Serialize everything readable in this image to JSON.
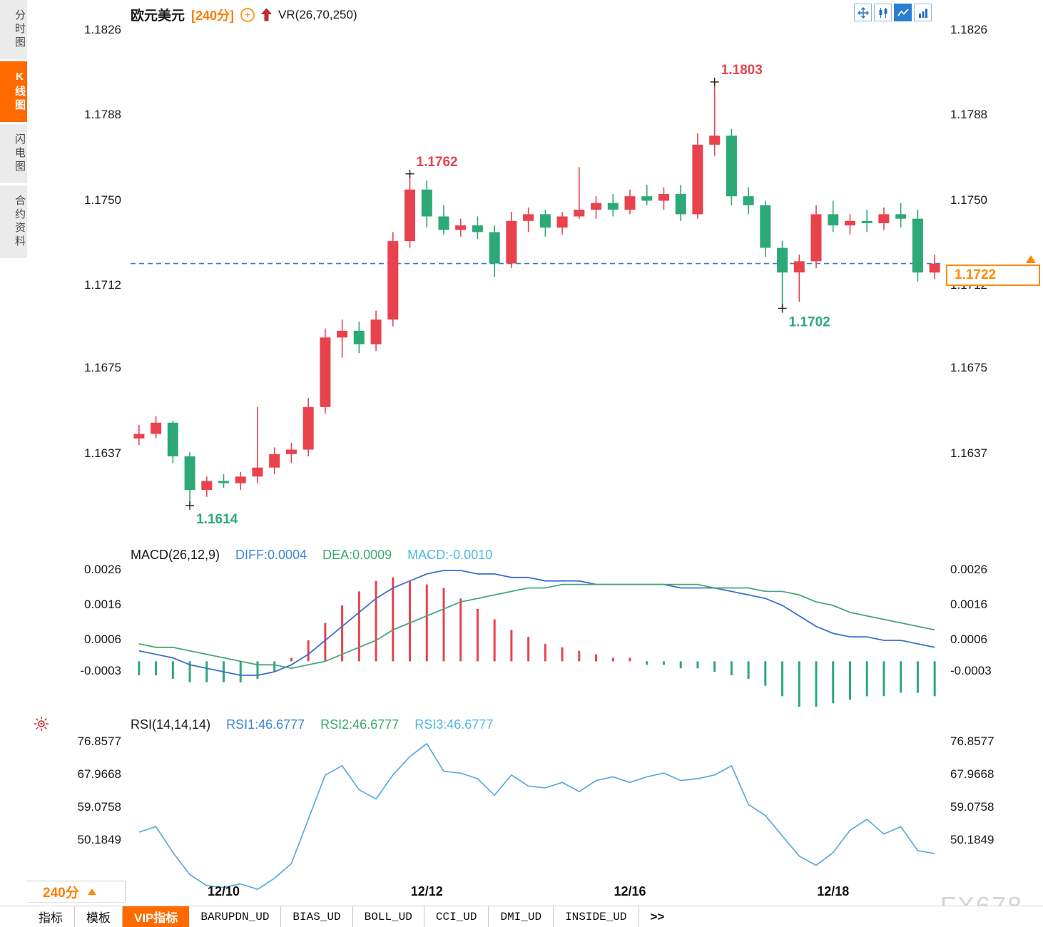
{
  "sidebar": {
    "items": [
      {
        "label": "分时图",
        "active": false
      },
      {
        "label": "K线图",
        "active": true
      },
      {
        "label": "闪电图",
        "active": false
      },
      {
        "label": "合约资料",
        "active": false
      }
    ]
  },
  "header": {
    "symbol": "欧元美元",
    "period": "[240分]",
    "vr": "VR(26,70,250)"
  },
  "icons": {
    "header": [
      "circle-plus",
      "red-up-arrow"
    ],
    "toolbar": [
      "pan-crosshair",
      "candlestick",
      "line-chart",
      "bar-columns"
    ],
    "rsi_row": "sun"
  },
  "colors": {
    "accent_orange": "#ff6a00",
    "badge_orange": "#ff8a00",
    "up_red": "#e8434d",
    "down_green": "#2ca977",
    "diff_blue": "#3d6fd0",
    "dea_green": "#47a877",
    "rsi_blue": "#58ace0",
    "dashed_line_blue": "#2f80d0"
  },
  "current_price": {
    "value": "1.1722"
  },
  "macd_header": {
    "title": "MACD(26,12,9)",
    "diff_label": "DIFF:0.0004",
    "dea_label": "DEA:0.0009",
    "macd_label": "MACD:-0.0010"
  },
  "rsi_header": {
    "title": "RSI(14,14,14)",
    "rsi1_label": "RSI1:46.6777",
    "rsi2_label": "RSI2:46.6777",
    "rsi3_label": "RSI3:46.6777"
  },
  "bottom": {
    "period_label": "240分"
  },
  "tabs": [
    {
      "label": "指标",
      "active": false
    },
    {
      "label": "模板",
      "active": false
    },
    {
      "label": "VIP指标",
      "active": true
    },
    {
      "label": "BARUPDN_UD",
      "active": false
    },
    {
      "label": "BIAS_UD",
      "active": false
    },
    {
      "label": "BOLL_UD",
      "active": false
    },
    {
      "label": "CCI_UD",
      "active": false
    },
    {
      "label": "DMI_UD",
      "active": false
    },
    {
      "label": "INSIDE_UD",
      "active": false
    },
    {
      "label": ">>",
      "active": false
    }
  ],
  "watermark": "FX678",
  "chart_data": [
    {
      "type": "candlestick",
      "title": "欧元美元 240分 K线图",
      "up_color": "#e8434d",
      "down_color": "#2ca977",
      "ylim": [
        1.1601,
        1.183
      ],
      "y_ticks": [
        "1.1826",
        "1.1788",
        "1.1750",
        "1.1712",
        "1.1675",
        "1.1637"
      ],
      "x_ticks": [
        {
          "label": "12/10",
          "index": 5
        },
        {
          "label": "12/12",
          "index": 17
        },
        {
          "label": "12/16",
          "index": 29
        },
        {
          "label": "12/18",
          "index": 41
        }
      ],
      "current_price": 1.1722,
      "candles_ohlc": [
        [
          1.1644,
          1.165,
          1.1641,
          1.1646
        ],
        [
          1.1646,
          1.1654,
          1.1644,
          1.1651
        ],
        [
          1.1651,
          1.1652,
          1.1633,
          1.1636
        ],
        [
          1.1636,
          1.1638,
          1.1614,
          1.1621
        ],
        [
          1.1621,
          1.1627,
          1.1618,
          1.1625
        ],
        [
          1.1625,
          1.1628,
          1.1622,
          1.1624
        ],
        [
          1.1624,
          1.1629,
          1.1621,
          1.1627
        ],
        [
          1.1627,
          1.1658,
          1.1624,
          1.1631
        ],
        [
          1.1631,
          1.164,
          1.1628,
          1.1637
        ],
        [
          1.1637,
          1.1642,
          1.1633,
          1.1639
        ],
        [
          1.1639,
          1.1662,
          1.1636,
          1.1658
        ],
        [
          1.1658,
          1.1693,
          1.1655,
          1.1689
        ],
        [
          1.1689,
          1.1697,
          1.168,
          1.1692
        ],
        [
          1.1692,
          1.1696,
          1.1682,
          1.1686
        ],
        [
          1.1686,
          1.1701,
          1.1683,
          1.1697
        ],
        [
          1.1697,
          1.1736,
          1.1694,
          1.1732
        ],
        [
          1.1732,
          1.1762,
          1.1729,
          1.1755
        ],
        [
          1.1755,
          1.1759,
          1.1738,
          1.1743
        ],
        [
          1.1743,
          1.1748,
          1.1735,
          1.1737
        ],
        [
          1.1737,
          1.1742,
          1.1734,
          1.1739
        ],
        [
          1.1739,
          1.1743,
          1.1733,
          1.1736
        ],
        [
          1.1736,
          1.1739,
          1.1716,
          1.1722
        ],
        [
          1.1722,
          1.1745,
          1.172,
          1.1741
        ],
        [
          1.1741,
          1.1747,
          1.1736,
          1.1744
        ],
        [
          1.1744,
          1.1746,
          1.1734,
          1.1738
        ],
        [
          1.1738,
          1.1745,
          1.1735,
          1.1743
        ],
        [
          1.1743,
          1.1765,
          1.1742,
          1.1746
        ],
        [
          1.1746,
          1.1752,
          1.1742,
          1.1749
        ],
        [
          1.1749,
          1.1753,
          1.1743,
          1.1746
        ],
        [
          1.1746,
          1.1755,
          1.1744,
          1.1752
        ],
        [
          1.1752,
          1.1757,
          1.1748,
          1.175
        ],
        [
          1.175,
          1.1756,
          1.1746,
          1.1753
        ],
        [
          1.1753,
          1.1757,
          1.1741,
          1.1744
        ],
        [
          1.1744,
          1.178,
          1.1742,
          1.1775
        ],
        [
          1.1775,
          1.1803,
          1.177,
          1.1779
        ],
        [
          1.1779,
          1.1782,
          1.1748,
          1.1752
        ],
        [
          1.1752,
          1.1756,
          1.1744,
          1.1748
        ],
        [
          1.1748,
          1.175,
          1.1725,
          1.1729
        ],
        [
          1.1729,
          1.1732,
          1.1702,
          1.1718
        ],
        [
          1.1718,
          1.1726,
          1.1705,
          1.1723
        ],
        [
          1.1723,
          1.1748,
          1.172,
          1.1744
        ],
        [
          1.1744,
          1.175,
          1.1736,
          1.1739
        ],
        [
          1.1739,
          1.1744,
          1.1735,
          1.1741
        ],
        [
          1.1741,
          1.1746,
          1.1736,
          1.174
        ],
        [
          1.174,
          1.1747,
          1.1737,
          1.1744
        ],
        [
          1.1744,
          1.1749,
          1.1738,
          1.1742
        ],
        [
          1.1742,
          1.1746,
          1.1714,
          1.1718
        ],
        [
          1.1718,
          1.1726,
          1.1715,
          1.1722
        ]
      ],
      "annotations": [
        {
          "index": 3,
          "price": 1.1614,
          "text": "1.1614",
          "kind": "low"
        },
        {
          "index": 16,
          "price": 1.1762,
          "text": "1.1762",
          "kind": "high"
        },
        {
          "index": 34,
          "price": 1.1803,
          "text": "1.1803",
          "kind": "high"
        },
        {
          "index": 38,
          "price": 1.1702,
          "text": "1.1702",
          "kind": "low"
        }
      ]
    },
    {
      "type": "macd",
      "title": "MACD(26,12,9)",
      "y_ticks": [
        "0.0026",
        "0.0016",
        "0.0006",
        "-0.0003"
      ],
      "diff_last": 0.0004,
      "dea_last": 0.0009,
      "macd_last": -0.001,
      "diff": [
        0.0003,
        0.0002,
        0.0001,
        -0.0001,
        -0.0002,
        -0.0003,
        -0.0004,
        -0.0004,
        -0.0003,
        -0.0001,
        0.0002,
        0.0006,
        0.001,
        0.0014,
        0.0018,
        0.0021,
        0.0023,
        0.0025,
        0.0026,
        0.0026,
        0.0025,
        0.0025,
        0.0024,
        0.0024,
        0.0023,
        0.0023,
        0.0023,
        0.0022,
        0.0022,
        0.0022,
        0.0022,
        0.0022,
        0.0021,
        0.0021,
        0.0021,
        0.002,
        0.0019,
        0.0018,
        0.0016,
        0.0013,
        0.001,
        0.0008,
        0.0007,
        0.0007,
        0.0006,
        0.0006,
        0.0005,
        0.0004
      ],
      "dea": [
        0.0005,
        0.0004,
        0.0004,
        0.0003,
        0.0002,
        0.0001,
        0.0,
        -0.0001,
        -0.0001,
        -0.0002,
        -0.0001,
        0.0,
        0.0002,
        0.0004,
        0.0006,
        0.0009,
        0.0011,
        0.0013,
        0.0015,
        0.0017,
        0.0018,
        0.0019,
        0.002,
        0.0021,
        0.0021,
        0.0022,
        0.0022,
        0.0022,
        0.0022,
        0.0022,
        0.0022,
        0.0022,
        0.0022,
        0.0022,
        0.0021,
        0.0021,
        0.0021,
        0.002,
        0.002,
        0.0019,
        0.0017,
        0.0016,
        0.0014,
        0.0013,
        0.0012,
        0.0011,
        0.001,
        0.0009
      ],
      "hist": [
        -0.0004,
        -0.0004,
        -0.0005,
        -0.0006,
        -0.0006,
        -0.0006,
        -0.0006,
        -0.0005,
        -0.0003,
        0.0001,
        0.0006,
        0.0011,
        0.0016,
        0.002,
        0.0023,
        0.0024,
        0.0023,
        0.0022,
        0.0021,
        0.0018,
        0.0015,
        0.0012,
        0.0009,
        0.0007,
        0.0005,
        0.0004,
        0.0003,
        0.0002,
        0.0001,
        0.0001,
        -0.0001,
        -0.0001,
        -0.0002,
        -0.0002,
        -0.0003,
        -0.0004,
        -0.0005,
        -0.0007,
        -0.001,
        -0.0013,
        -0.0013,
        -0.0012,
        -0.0011,
        -0.001,
        -0.001,
        -0.0009,
        -0.0009,
        -0.001
      ]
    },
    {
      "type": "line",
      "title": "RSI(14,14,14)",
      "y_ticks": [
        "76.8577",
        "67.9668",
        "59.0758",
        "50.1849"
      ],
      "last_values": {
        "rsi1": 46.6777,
        "rsi2": 46.6777,
        "rsi3": 46.6777
      },
      "values": [
        52.5,
        54.0,
        47.0,
        41.0,
        38.0,
        37.5,
        38.5,
        37.0,
        40.0,
        44.0,
        56.0,
        68.0,
        70.5,
        64.0,
        61.5,
        68.0,
        73.0,
        76.5,
        69.0,
        68.5,
        67.0,
        62.5,
        68.0,
        65.0,
        64.5,
        66.0,
        63.5,
        66.5,
        67.5,
        66.0,
        67.5,
        68.5,
        66.5,
        67.0,
        68.0,
        70.5,
        60.0,
        57.0,
        51.5,
        46.0,
        43.5,
        47.0,
        53.0,
        56.0,
        52.0,
        54.0,
        47.5,
        46.7
      ]
    }
  ]
}
